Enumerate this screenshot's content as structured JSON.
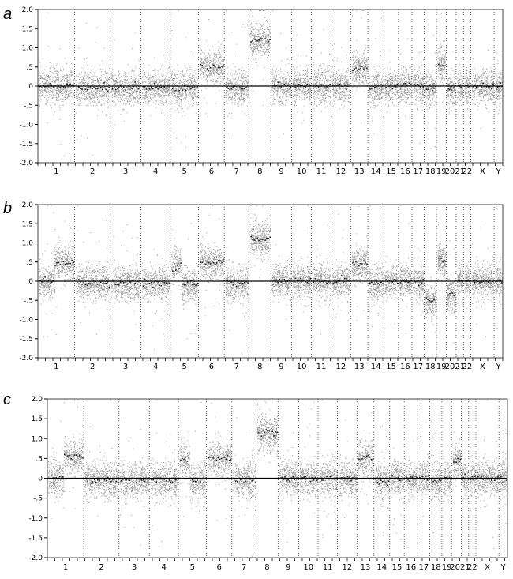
{
  "figure": {
    "panels": [
      {
        "letter": "a"
      },
      {
        "letter": "b"
      },
      {
        "letter": "c"
      }
    ]
  },
  "chart_data": [
    {
      "type": "scatter",
      "panel": "a",
      "ylim": [
        -2.0,
        2.0
      ],
      "yticks": [
        "2.0",
        "1.5",
        "1.0",
        ".5",
        "0",
        "-.5",
        "-1.0",
        "-1.5",
        "-2.0"
      ],
      "categories": [
        "1",
        "2",
        "3",
        "4",
        "5",
        "6",
        "7",
        "8",
        "9",
        "10",
        "11",
        "12",
        "13",
        "14",
        "15",
        "16",
        "17",
        "18",
        "19",
        "20",
        "21",
        "22",
        "X",
        "Y"
      ],
      "tick_labels": [
        "1",
        "2",
        "3",
        "4",
        "5",
        "6",
        "7",
        "8",
        "9",
        "10",
        "11",
        "12",
        "13",
        "14",
        "15",
        "16",
        "17",
        "18",
        "19",
        "2021",
        "22",
        "X",
        "Y"
      ],
      "chromosome_widths": [
        30,
        29,
        25,
        24,
        23,
        21,
        20,
        18,
        17,
        16,
        16,
        16,
        14,
        13,
        12,
        11,
        10,
        10,
        8,
        8,
        6,
        6,
        19,
        7
      ],
      "values": [
        0.0,
        -0.05,
        -0.05,
        -0.05,
        -0.05,
        0.5,
        -0.05,
        1.2,
        0.0,
        0.0,
        0.0,
        0.0,
        0.45,
        -0.05,
        0.0,
        0.0,
        0.0,
        -0.05,
        0.55,
        -0.1,
        0.0,
        0.0,
        0.0,
        0.0
      ],
      "point_color": "#9a9a9a",
      "segment_color": "#222222",
      "baseline": 0,
      "grid": "vertical dotted separators at chromosome boundaries"
    },
    {
      "type": "scatter",
      "panel": "b",
      "ylim": [
        -2.0,
        2.0
      ],
      "yticks": [
        "2.0",
        "1.5",
        "1.0",
        ".5",
        "0",
        "-.5",
        "-1.0",
        "-1.5",
        "-2.0"
      ],
      "categories": [
        "1",
        "2",
        "3",
        "4",
        "5",
        "6",
        "7",
        "8",
        "9",
        "10",
        "11",
        "12",
        "13",
        "14",
        "15",
        "16",
        "17",
        "18",
        "19",
        "20",
        "21",
        "22",
        "X",
        "Y"
      ],
      "tick_labels": [
        "1",
        "2",
        "3",
        "4",
        "5",
        "6",
        "7",
        "8",
        "9",
        "10",
        "11",
        "12",
        "13",
        "14",
        "15",
        "16",
        "17",
        "18",
        "19",
        "2021",
        "22",
        "X",
        "Y"
      ],
      "chromosome_widths": [
        30,
        29,
        25,
        24,
        23,
        21,
        20,
        18,
        17,
        16,
        16,
        16,
        14,
        13,
        12,
        11,
        10,
        10,
        8,
        8,
        6,
        6,
        19,
        7
      ],
      "segments": [
        {
          "chrom": "1",
          "parts": [
            [
              0.0,
              0.45,
              0.0
            ],
            [
              0.45,
              1.0,
              0.5
            ]
          ]
        },
        {
          "chrom": "5",
          "parts": [
            [
              0.0,
              0.4,
              0.4
            ],
            [
              0.4,
              1.0,
              -0.1
            ]
          ]
        },
        {
          "chrom": "6",
          "parts": [
            [
              0.0,
              1.0,
              0.5
            ]
          ]
        },
        {
          "chrom": "8",
          "parts": [
            [
              0.0,
              1.0,
              1.1
            ]
          ]
        },
        {
          "chrom": "13",
          "parts": [
            [
              0.0,
              1.0,
              0.45
            ]
          ]
        },
        {
          "chrom": "18",
          "parts": [
            [
              0.0,
              1.0,
              -0.5
            ]
          ]
        },
        {
          "chrom": "19",
          "parts": [
            [
              0.0,
              1.0,
              0.55
            ]
          ]
        },
        {
          "chrom": "20",
          "parts": [
            [
              0.0,
              1.0,
              -0.35
            ]
          ]
        }
      ],
      "values": [
        0.25,
        -0.05,
        -0.05,
        -0.05,
        0.1,
        0.5,
        -0.05,
        1.1,
        0.0,
        0.0,
        0.0,
        0.0,
        0.45,
        -0.05,
        0.0,
        0.0,
        0.0,
        -0.5,
        0.55,
        -0.35,
        0.0,
        0.0,
        0.0,
        0.0
      ],
      "point_color": "#9a9a9a",
      "segment_color": "#222222",
      "baseline": 0,
      "grid": "vertical dotted separators at chromosome boundaries"
    },
    {
      "type": "scatter",
      "panel": "c",
      "ylim": [
        -2.0,
        2.0
      ],
      "yticks": [
        "2.0",
        "1.5",
        "1.0",
        ".5",
        "0",
        "-.5",
        "-1.0",
        "-1.5",
        "-2.0"
      ],
      "categories": [
        "1",
        "2",
        "3",
        "4",
        "5",
        "6",
        "7",
        "8",
        "9",
        "10",
        "11",
        "12",
        "13",
        "14",
        "15",
        "16",
        "17",
        "18",
        "19",
        "20",
        "21",
        "22",
        "X",
        "Y"
      ],
      "tick_labels": [
        "1",
        "2",
        "3",
        "4",
        "5",
        "6",
        "7",
        "8",
        "9",
        "10",
        "11",
        "12",
        "13",
        "14",
        "15",
        "16",
        "17",
        "18",
        "19",
        "2021",
        "22",
        "X",
        "Y"
      ],
      "chromosome_widths": [
        30,
        29,
        25,
        24,
        23,
        21,
        20,
        18,
        17,
        16,
        16,
        16,
        14,
        13,
        12,
        11,
        10,
        10,
        8,
        8,
        6,
        6,
        19,
        7
      ],
      "segments": [
        {
          "chrom": "1",
          "parts": [
            [
              0.0,
              0.45,
              0.0
            ],
            [
              0.45,
              1.0,
              0.55
            ]
          ]
        },
        {
          "chrom": "5",
          "parts": [
            [
              0.0,
              0.4,
              0.45
            ],
            [
              0.4,
              1.0,
              -0.05
            ]
          ]
        },
        {
          "chrom": "6",
          "parts": [
            [
              0.0,
              1.0,
              0.5
            ]
          ]
        },
        {
          "chrom": "8",
          "parts": [
            [
              0.0,
              1.0,
              1.15
            ]
          ]
        },
        {
          "chrom": "13",
          "parts": [
            [
              0.0,
              1.0,
              0.5
            ]
          ]
        },
        {
          "chrom": "14",
          "parts": [
            [
              0.0,
              1.0,
              -0.1
            ]
          ]
        },
        {
          "chrom": "20",
          "parts": [
            [
              0.0,
              1.0,
              0.45
            ]
          ]
        }
      ],
      "values": [
        0.3,
        -0.05,
        -0.05,
        -0.05,
        0.15,
        0.5,
        -0.05,
        1.15,
        0.0,
        0.0,
        0.0,
        0.0,
        0.5,
        -0.1,
        0.0,
        0.0,
        0.0,
        -0.05,
        0.0,
        0.45,
        0.0,
        0.0,
        0.0,
        0.0
      ],
      "point_color": "#9a9a9a",
      "segment_color": "#222222",
      "baseline": 0,
      "grid": "vertical dotted separators at chromosome boundaries"
    }
  ]
}
